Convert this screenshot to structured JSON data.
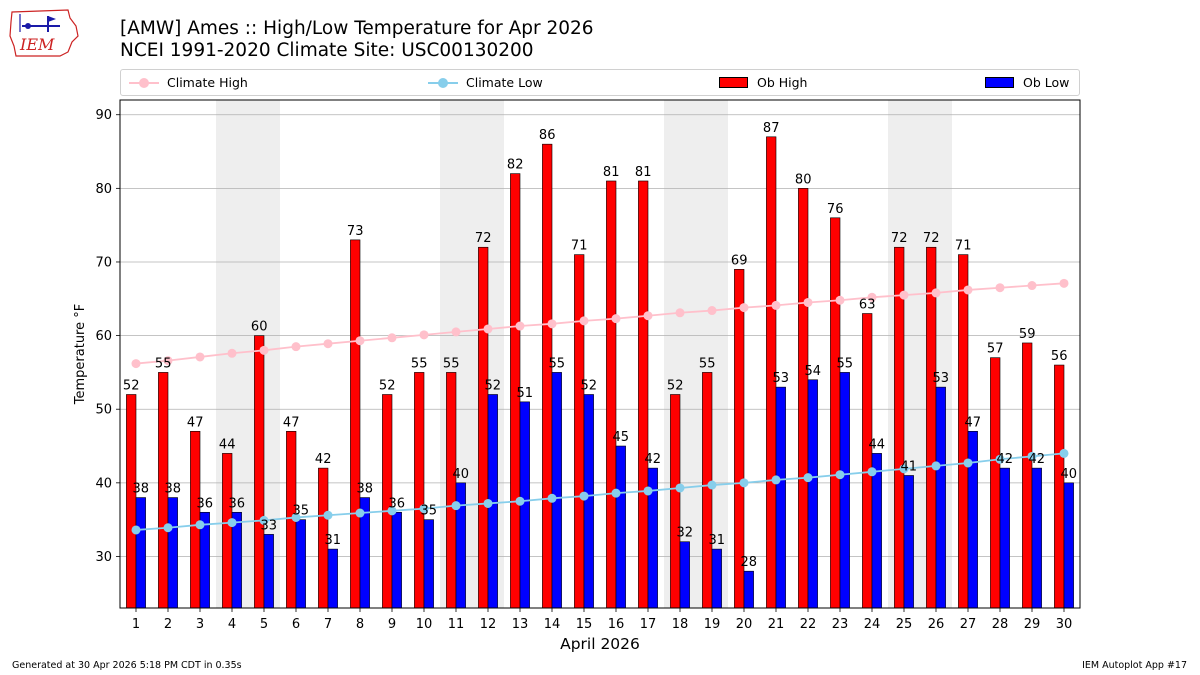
{
  "header": {
    "title_line1": "[AMW] Ames :: High/Low Temperature for Apr 2026",
    "title_line2": "NCEI 1991-2020 Climate Site: USC00130200"
  },
  "logo": {
    "text": "IEM"
  },
  "legend": {
    "climate_high": "Climate High",
    "climate_low": "Climate Low",
    "ob_high": "Ob High",
    "ob_low": "Ob Low"
  },
  "footer": {
    "generated": "Generated at 30 Apr 2026 5:18 PM CDT in 0.35s",
    "app": "IEM Autoplot App #17"
  },
  "colors": {
    "ob_high": "#ff0000",
    "ob_low": "#0000ff",
    "climate_high": "#ffc0cb",
    "climate_low": "#87ceeb",
    "weekend_band": "#eeeeee"
  },
  "chart_data": {
    "type": "bar",
    "title": "[AMW] Ames :: High/Low Temperature for Apr 2026",
    "xlabel": "April 2026",
    "ylabel": "Temperature °F",
    "ylim": [
      23,
      92
    ],
    "yticks": [
      30,
      40,
      50,
      60,
      70,
      80,
      90
    ],
    "grid": "horizontal",
    "categories": [
      "1",
      "2",
      "3",
      "4",
      "5",
      "6",
      "7",
      "8",
      "9",
      "10",
      "11",
      "12",
      "13",
      "14",
      "15",
      "16",
      "17",
      "18",
      "19",
      "20",
      "21",
      "22",
      "23",
      "24",
      "25",
      "26",
      "27",
      "28",
      "29",
      "30"
    ],
    "weekend_days": [
      4,
      5,
      11,
      12,
      18,
      19,
      25,
      26
    ],
    "series": [
      {
        "name": "Ob High",
        "type": "bar",
        "values": [
          52,
          55,
          47,
          44,
          60,
          47,
          42,
          73,
          52,
          55,
          55,
          72,
          82,
          86,
          71,
          81,
          81,
          52,
          55,
          69,
          87,
          80,
          76,
          63,
          72,
          72,
          71,
          57,
          59,
          56
        ]
      },
      {
        "name": "Ob Low",
        "type": "bar",
        "values": [
          38,
          38,
          36,
          36,
          33,
          35,
          31,
          38,
          36,
          35,
          40,
          52,
          51,
          55,
          52,
          45,
          42,
          32,
          31,
          28,
          53,
          54,
          55,
          44,
          41,
          53,
          47,
          42,
          42,
          40
        ]
      },
      {
        "name": "Climate High",
        "type": "line",
        "values": [
          56.2,
          56.6,
          57.1,
          57.6,
          58.0,
          58.5,
          58.9,
          59.3,
          59.7,
          60.1,
          60.5,
          60.9,
          61.3,
          61.6,
          62.0,
          62.3,
          62.7,
          63.1,
          63.4,
          63.8,
          64.1,
          64.5,
          64.8,
          65.2,
          65.5,
          65.8,
          66.2,
          66.5,
          66.8,
          67.1
        ]
      },
      {
        "name": "Climate Low",
        "type": "line",
        "values": [
          33.6,
          33.9,
          34.3,
          34.6,
          34.9,
          35.3,
          35.6,
          35.9,
          36.2,
          36.5,
          36.9,
          37.2,
          37.5,
          37.9,
          38.2,
          38.6,
          38.9,
          39.3,
          39.7,
          40.0,
          40.4,
          40.7,
          41.1,
          41.5,
          41.9,
          42.3,
          42.7,
          43.2,
          43.6,
          44.0
        ]
      }
    ]
  }
}
